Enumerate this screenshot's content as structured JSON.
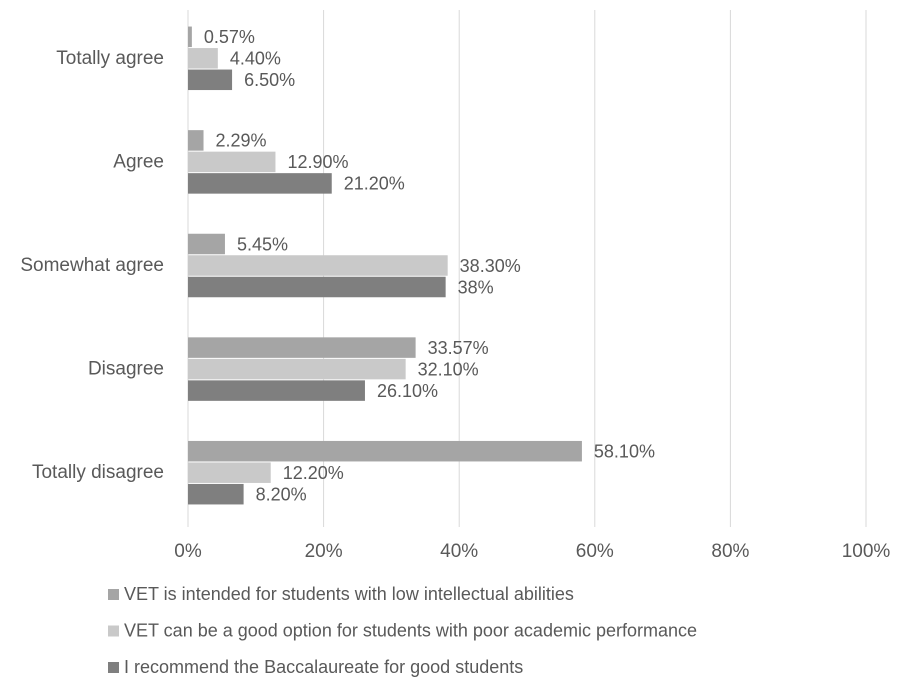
{
  "chart_data": {
    "type": "bar",
    "orientation": "horizontal",
    "categories": [
      "Totally agree",
      "Agree",
      "Somewhat agree",
      "Disagree",
      "Totally disagree"
    ],
    "series": [
      {
        "name": "VET is intended for students with low intellectual abilities",
        "color": "#a5a5a5",
        "values": [
          0.57,
          2.29,
          5.45,
          33.57,
          58.1
        ],
        "value_labels": [
          "0.57%",
          "2.29%",
          "5.45%",
          "33.57%",
          "58.10%"
        ]
      },
      {
        "name": "VET can be a good option for students with poor academic performance",
        "color": "#c9c9c9",
        "values": [
          4.4,
          12.9,
          38.3,
          32.1,
          12.2
        ],
        "value_labels": [
          "4.40%",
          "12.90%",
          "38.30%",
          "32.10%",
          "12.20%"
        ]
      },
      {
        "name": "I recommend the Baccalaureate for good students",
        "color": "#7f7f7f",
        "values": [
          6.5,
          21.2,
          38,
          26.1,
          8.2
        ],
        "value_labels": [
          "6.50%",
          "21.20%",
          "38%",
          "26.10%",
          "8.20%"
        ]
      }
    ],
    "xlim": [
      0,
      100
    ],
    "xticks": [
      {
        "value": 0,
        "label": "0%"
      },
      {
        "value": 20,
        "label": "20%"
      },
      {
        "value": 40,
        "label": "40%"
      },
      {
        "value": 60,
        "label": "60%"
      },
      {
        "value": 80,
        "label": "80%"
      },
      {
        "value": 100,
        "label": "100%"
      }
    ],
    "grid": true,
    "legend": "bottom"
  }
}
